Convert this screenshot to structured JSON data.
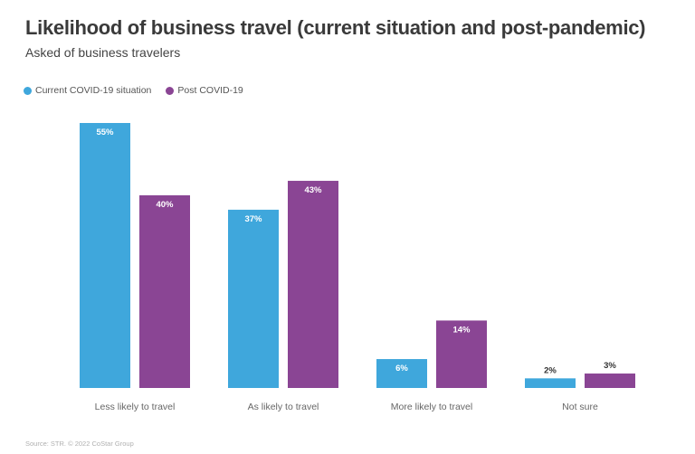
{
  "chart_data": {
    "type": "bar",
    "title": "Likelihood of business travel (current situation and post-pandemic)",
    "subtitle": "Asked of business travelers",
    "categories": [
      "Less likely to travel",
      "As likely to travel",
      "More likely to travel",
      "Not sure"
    ],
    "series": [
      {
        "name": "Current COVID-19 situation",
        "color": "#3fa7dc",
        "values": [
          55,
          37,
          6,
          2
        ],
        "labels": [
          "55%",
          "37%",
          "6%",
          "2%"
        ]
      },
      {
        "name": "Post COVID-19",
        "color": "#8a4594",
        "values": [
          40,
          43,
          14,
          3
        ],
        "labels": [
          "40%",
          "43%",
          "14%",
          "3%"
        ]
      }
    ],
    "ylim": [
      0,
      55
    ],
    "xlabel": "",
    "ylabel": "",
    "grid": false,
    "legend": "top-left"
  },
  "source": "Source: STR. © 2022 CoStar Group"
}
